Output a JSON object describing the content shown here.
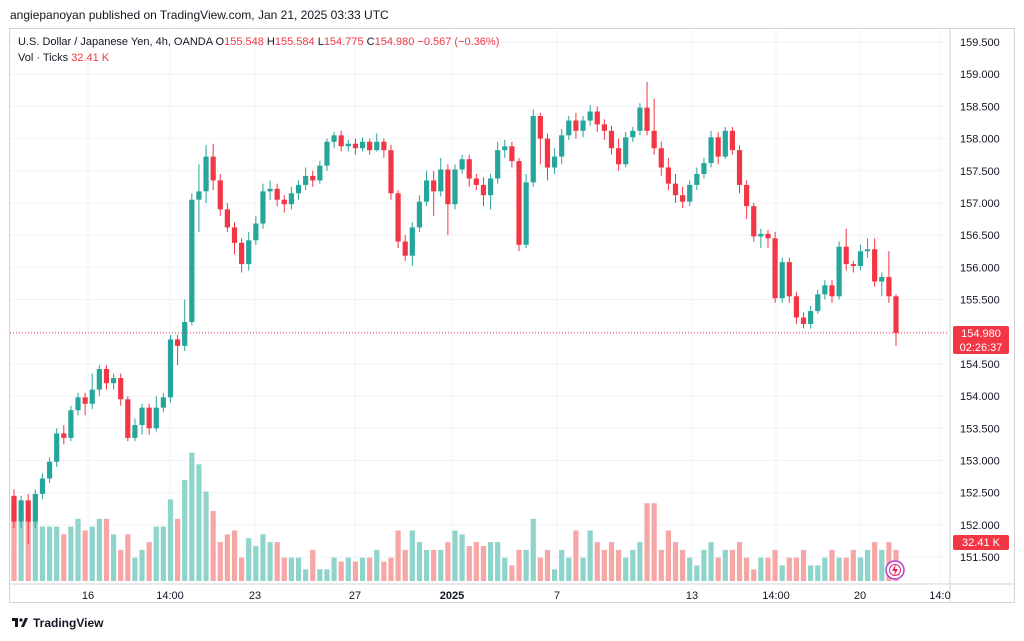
{
  "header": {
    "publish_line": "angiepanoyan published on TradingView.com, Jan 21, 2025 03:33 UTC"
  },
  "legend": {
    "symbol": "U.S. Dollar / Japanese Yen, 4h, OANDA",
    "o_label": "O",
    "o_value": "155.548",
    "h_label": "H",
    "h_value": "155.584",
    "l_label": "L",
    "l_value": "154.775",
    "c_label": "C",
    "c_value": "154.980",
    "change": "−0.567 (−0.36%)",
    "vol_label": "Vol · Ticks",
    "vol_value": "32.41 K"
  },
  "price_tag": {
    "price": "154.980",
    "countdown": "02:26:37"
  },
  "volume_tag": "32.41 K",
  "footer": {
    "brand": "TradingView"
  },
  "colors": {
    "up": "#26a69a",
    "down": "#f23645",
    "vol_up": "#8fd4cb",
    "vol_down": "#f7a6a6",
    "grid": "#f0f3fa"
  },
  "chart_data": {
    "type": "candlestick",
    "title": "U.S. Dollar / Japanese Yen, 4h, OANDA",
    "y_ticks": [
      "159.500",
      "159.000",
      "158.500",
      "158.000",
      "157.500",
      "157.000",
      "156.500",
      "156.000",
      "155.500",
      "155.000",
      "154.500",
      "154.000",
      "153.500",
      "153.000",
      "152.500",
      "152.000",
      "151.500"
    ],
    "x_ticks": [
      "16",
      "14:00",
      "23",
      "27",
      "2025",
      "7",
      "13",
      "14:00",
      "20",
      "14:0"
    ],
    "ylim": [
      151.35,
      159.75
    ],
    "last_price": 154.98,
    "candles": [
      [
        152.45,
        152.05,
        152.55,
        151.95
      ],
      [
        152.05,
        152.38,
        152.45,
        151.95
      ],
      [
        152.38,
        152.05,
        152.48,
        151.7
      ],
      [
        152.05,
        152.48,
        152.55,
        151.95
      ],
      [
        152.48,
        152.72,
        152.8,
        152.4
      ],
      [
        152.72,
        152.98,
        153.05,
        152.65
      ],
      [
        152.98,
        153.42,
        153.5,
        152.9
      ],
      [
        153.42,
        153.35,
        153.55,
        153.25
      ],
      [
        153.35,
        153.78,
        153.85,
        153.3
      ],
      [
        153.78,
        153.98,
        154.05,
        153.7
      ],
      [
        153.98,
        153.88,
        154.05,
        153.7
      ],
      [
        153.88,
        154.1,
        154.35,
        153.8
      ],
      [
        154.1,
        154.42,
        154.48,
        154.0
      ],
      [
        154.42,
        154.2,
        154.48,
        154.1
      ],
      [
        154.2,
        154.28,
        154.35,
        154.1
      ],
      [
        154.28,
        153.95,
        154.35,
        153.85
      ],
      [
        153.95,
        153.35,
        154.0,
        153.3
      ],
      [
        153.35,
        153.55,
        153.65,
        153.3
      ],
      [
        153.55,
        153.82,
        153.88,
        153.4
      ],
      [
        153.82,
        153.5,
        153.88,
        153.4
      ],
      [
        153.5,
        153.82,
        154.0,
        153.45
      ],
      [
        153.82,
        153.98,
        154.05,
        153.75
      ],
      [
        153.98,
        154.88,
        154.95,
        153.9
      ],
      [
        154.88,
        154.78,
        154.95,
        154.48
      ],
      [
        154.78,
        155.15,
        155.5,
        154.7
      ],
      [
        155.15,
        157.05,
        157.15,
        155.1
      ],
      [
        157.05,
        157.18,
        157.6,
        156.55
      ],
      [
        157.18,
        157.72,
        157.9,
        157.0
      ],
      [
        157.72,
        157.35,
        157.92,
        157.2
      ],
      [
        157.35,
        156.9,
        157.45,
        156.8
      ],
      [
        156.9,
        156.62,
        157.0,
        156.55
      ],
      [
        156.62,
        156.38,
        156.7,
        156.2
      ],
      [
        156.38,
        156.05,
        156.45,
        155.92
      ],
      [
        156.05,
        156.42,
        156.55,
        155.95
      ],
      [
        156.42,
        156.68,
        156.8,
        156.35
      ],
      [
        156.68,
        157.18,
        157.3,
        156.6
      ],
      [
        157.18,
        157.22,
        157.35,
        157.05
      ],
      [
        157.22,
        157.05,
        157.3,
        156.95
      ],
      [
        157.05,
        156.98,
        157.12,
        156.85
      ],
      [
        156.98,
        157.15,
        157.25,
        156.9
      ],
      [
        157.15,
        157.28,
        157.35,
        157.05
      ],
      [
        157.28,
        157.42,
        157.55,
        157.2
      ],
      [
        157.42,
        157.35,
        157.5,
        157.25
      ],
      [
        157.35,
        157.58,
        157.65,
        157.3
      ],
      [
        157.58,
        157.95,
        158.0,
        157.5
      ],
      [
        157.95,
        158.05,
        158.1,
        157.85
      ],
      [
        158.05,
        157.88,
        158.12,
        157.8
      ],
      [
        157.88,
        157.92,
        157.98,
        157.8
      ],
      [
        157.92,
        157.85,
        158.0,
        157.75
      ],
      [
        157.85,
        157.95,
        158.02,
        157.8
      ],
      [
        157.95,
        157.82,
        158.0,
        157.75
      ],
      [
        157.82,
        157.95,
        158.08,
        157.8
      ],
      [
        157.95,
        157.82,
        158.0,
        157.7
      ],
      [
        157.82,
        157.15,
        157.9,
        157.05
      ],
      [
        157.15,
        156.4,
        157.2,
        156.3
      ],
      [
        156.4,
        156.18,
        156.5,
        156.1
      ],
      [
        156.18,
        156.62,
        156.7,
        156.02
      ],
      [
        156.62,
        157.02,
        157.12,
        156.55
      ],
      [
        157.02,
        157.35,
        157.5,
        156.95
      ],
      [
        157.35,
        157.18,
        157.5,
        156.8
      ],
      [
        157.18,
        157.52,
        157.7,
        157.1
      ],
      [
        157.52,
        156.98,
        157.6,
        156.5
      ],
      [
        156.98,
        157.52,
        157.6,
        156.9
      ],
      [
        157.52,
        157.68,
        157.75,
        157.45
      ],
      [
        157.68,
        157.38,
        157.75,
        157.25
      ],
      [
        157.38,
        157.28,
        157.45,
        157.2
      ],
      [
        157.28,
        157.12,
        157.4,
        156.95
      ],
      [
        157.12,
        157.38,
        157.45,
        156.9
      ],
      [
        157.38,
        157.82,
        157.95,
        157.3
      ],
      [
        157.82,
        157.88,
        157.98,
        157.7
      ],
      [
        157.88,
        157.65,
        157.95,
        157.55
      ],
      [
        157.65,
        156.35,
        157.7,
        156.25
      ],
      [
        156.35,
        157.32,
        157.45,
        156.3
      ],
      [
        157.32,
        158.35,
        158.45,
        157.25
      ],
      [
        158.35,
        158.0,
        158.4,
        157.6
      ],
      [
        158.0,
        157.55,
        158.08,
        157.35
      ],
      [
        157.55,
        157.72,
        157.85,
        157.45
      ],
      [
        157.72,
        158.05,
        158.15,
        157.6
      ],
      [
        158.05,
        158.28,
        158.35,
        157.98
      ],
      [
        158.28,
        158.12,
        158.4,
        158.0
      ],
      [
        158.12,
        158.28,
        158.35,
        158.02
      ],
      [
        158.28,
        158.42,
        158.52,
        158.2
      ],
      [
        158.42,
        158.22,
        158.5,
        158.1
      ],
      [
        158.22,
        158.12,
        158.3,
        157.98
      ],
      [
        158.12,
        157.85,
        158.2,
        157.75
      ],
      [
        157.85,
        157.6,
        158.0,
        157.5
      ],
      [
        157.6,
        158.02,
        158.1,
        157.55
      ],
      [
        158.02,
        158.12,
        158.18,
        157.95
      ],
      [
        158.12,
        158.48,
        158.55,
        158.05
      ],
      [
        158.48,
        158.12,
        158.88,
        158.05
      ],
      [
        158.12,
        157.85,
        158.62,
        157.75
      ],
      [
        157.85,
        157.55,
        157.95,
        157.42
      ],
      [
        157.55,
        157.3,
        157.7,
        157.2
      ],
      [
        157.3,
        157.12,
        157.45,
        157.0
      ],
      [
        157.12,
        157.02,
        157.25,
        156.92
      ],
      [
        157.02,
        157.28,
        157.35,
        156.95
      ],
      [
        157.28,
        157.45,
        157.55,
        157.2
      ],
      [
        157.45,
        157.62,
        157.7,
        157.38
      ],
      [
        157.62,
        158.02,
        158.12,
        157.55
      ],
      [
        158.02,
        157.72,
        158.1,
        157.6
      ],
      [
        157.72,
        158.12,
        158.18,
        157.68
      ],
      [
        158.12,
        157.82,
        158.18,
        157.75
      ],
      [
        157.82,
        157.28,
        157.9,
        157.15
      ],
      [
        157.28,
        156.95,
        157.35,
        156.75
      ],
      [
        156.95,
        156.48,
        157.0,
        156.4
      ],
      [
        156.48,
        156.52,
        156.6,
        156.3
      ],
      [
        156.52,
        156.45,
        156.58,
        156.3
      ],
      [
        156.45,
        155.52,
        156.55,
        155.45
      ],
      [
        155.52,
        156.08,
        156.15,
        155.45
      ],
      [
        156.08,
        155.55,
        156.15,
        155.45
      ],
      [
        155.55,
        155.22,
        155.62,
        155.12
      ],
      [
        155.22,
        155.12,
        155.3,
        155.05
      ],
      [
        155.12,
        155.32,
        155.4,
        155.05
      ],
      [
        155.32,
        155.58,
        155.65,
        155.28
      ],
      [
        155.58,
        155.72,
        155.8,
        155.5
      ],
      [
        155.72,
        155.55,
        155.8,
        155.45
      ],
      [
        155.55,
        156.32,
        156.4,
        155.5
      ],
      [
        156.32,
        156.05,
        156.6,
        155.95
      ],
      [
        156.05,
        156.02,
        156.1,
        155.92
      ],
      [
        156.02,
        156.25,
        156.35,
        155.95
      ],
      [
        156.25,
        156.28,
        156.45,
        156.15
      ],
      [
        156.28,
        155.78,
        156.45,
        155.7
      ],
      [
        155.78,
        155.85,
        155.92,
        155.55
      ],
      [
        155.85,
        155.55,
        156.25,
        155.45
      ],
      [
        155.55,
        154.98,
        155.58,
        154.78
      ]
    ],
    "volumes": [
      0.62,
      0.6,
      0.58,
      0.58,
      0.56,
      0.56,
      0.56,
      0.54,
      0.56,
      0.58,
      0.55,
      0.56,
      0.58,
      0.58,
      0.54,
      0.5,
      0.54,
      0.48,
      0.5,
      0.52,
      0.56,
      0.56,
      0.63,
      0.58,
      0.68,
      0.75,
      0.72,
      0.65,
      0.6,
      0.52,
      0.54,
      0.55,
      0.48,
      0.53,
      0.51,
      0.54,
      0.52,
      0.52,
      0.48,
      0.48,
      0.48,
      0.45,
      0.5,
      0.45,
      0.45,
      0.48,
      0.47,
      0.48,
      0.47,
      0.48,
      0.48,
      0.5,
      0.47,
      0.48,
      0.55,
      0.5,
      0.55,
      0.52,
      0.5,
      0.5,
      0.5,
      0.52,
      0.55,
      0.54,
      0.51,
      0.52,
      0.51,
      0.52,
      0.52,
      0.48,
      0.46,
      0.5,
      0.5,
      0.58,
      0.48,
      0.5,
      0.45,
      0.5,
      0.48,
      0.55,
      0.48,
      0.55,
      0.52,
      0.5,
      0.52,
      0.5,
      0.48,
      0.5,
      0.52,
      0.62,
      0.62,
      0.5,
      0.55,
      0.52,
      0.5,
      0.48,
      0.46,
      0.5,
      0.52,
      0.48,
      0.5,
      0.5,
      0.52,
      0.48,
      0.45,
      0.48,
      0.48,
      0.5,
      0.46,
      0.48,
      0.48,
      0.5,
      0.46,
      0.46,
      0.48,
      0.5,
      0.48,
      0.48,
      0.5,
      0.48,
      0.5,
      0.52,
      0.5,
      0.52,
      0.5
    ]
  }
}
